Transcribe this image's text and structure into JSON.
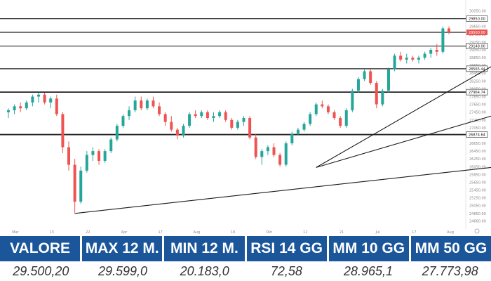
{
  "chart_data": {
    "type": "candlestick",
    "title": "",
    "ylim": [
      24450,
      30150
    ],
    "y_ticks": [
      24660,
      24850,
      25050,
      25250,
      25450,
      25650,
      25850,
      26050,
      26250,
      26450,
      26650,
      26850,
      27050,
      27250,
      27450,
      27650,
      27850,
      28050,
      28250,
      28450,
      28650,
      28850,
      29050,
      29250,
      29450,
      29650,
      29850,
      30050
    ],
    "x_tick_labels": [
      "Mar",
      "13",
      "22",
      "Apr",
      "17",
      "Aug",
      "19",
      "Okt",
      "12",
      "21",
      "Jul",
      "17",
      "Aug"
    ],
    "levels": [
      {
        "value": 29850,
        "label": "29850.00",
        "highlight": false
      },
      {
        "value": 29500,
        "label": "29500.00",
        "highlight": true
      },
      {
        "value": 29148,
        "label": "29148.00",
        "highlight": false
      },
      {
        "value": 28565.44,
        "label": "28565.44",
        "highlight": false
      },
      {
        "value": 27964.74,
        "label": "27964.74",
        "highlight": false
      },
      {
        "value": 26874.64,
        "label": "26874.64",
        "highlight": false
      }
    ],
    "trendlines": [
      {
        "from": [
          11,
          24850
        ],
        "to": [
          80,
          26030
        ]
      },
      {
        "from": [
          51,
          26030
        ],
        "to": [
          80,
          28620
        ]
      },
      {
        "from": [
          51,
          26030
        ],
        "to": [
          80,
          27350
        ]
      }
    ],
    "candles": [
      [
        27450,
        27550,
        27300,
        27500
      ],
      [
        27500,
        27650,
        27400,
        27600
      ],
      [
        27600,
        27700,
        27450,
        27550
      ],
      [
        27550,
        27750,
        27500,
        27700
      ],
      [
        27700,
        27900,
        27600,
        27850
      ],
      [
        27850,
        27950,
        27700,
        27900
      ],
      [
        27900,
        27950,
        27650,
        27700
      ],
      [
        27700,
        27850,
        27550,
        27800
      ],
      [
        27800,
        27900,
        27350,
        27400
      ],
      [
        27400,
        27450,
        26400,
        26550
      ],
      [
        26550,
        26700,
        25950,
        26100
      ],
      [
        26100,
        26250,
        24850,
        25150
      ],
      [
        25150,
        26050,
        25100,
        25950
      ],
      [
        25950,
        26450,
        25900,
        26350
      ],
      [
        26350,
        26550,
        26200,
        26450
      ],
      [
        26450,
        26500,
        26100,
        26200
      ],
      [
        26200,
        26500,
        26150,
        26450
      ],
      [
        26450,
        26800,
        26400,
        26750
      ],
      [
        26750,
        27150,
        26700,
        27100
      ],
      [
        27100,
        27400,
        27050,
        27350
      ],
      [
        27350,
        27600,
        27250,
        27500
      ],
      [
        27500,
        27850,
        27450,
        27750
      ],
      [
        27750,
        27850,
        27500,
        27550
      ],
      [
        27550,
        27800,
        27500,
        27750
      ],
      [
        27750,
        27850,
        27550,
        27600
      ],
      [
        27600,
        27700,
        27350,
        27400
      ],
      [
        27400,
        27450,
        27100,
        27200
      ],
      [
        27200,
        27350,
        26950,
        27000
      ],
      [
        27000,
        27050,
        26750,
        26850
      ],
      [
        26850,
        27150,
        26800,
        27100
      ],
      [
        27100,
        27450,
        27050,
        27400
      ],
      [
        27400,
        27500,
        27300,
        27350
      ],
      [
        27350,
        27500,
        27300,
        27450
      ],
      [
        27450,
        27500,
        27250,
        27300
      ],
      [
        27300,
        27450,
        27200,
        27350
      ],
      [
        27350,
        27500,
        27300,
        27450
      ],
      [
        27450,
        27500,
        27200,
        27250
      ],
      [
        27250,
        27300,
        27000,
        27050
      ],
      [
        27050,
        27250,
        27000,
        27200
      ],
      [
        27200,
        27350,
        27100,
        27300
      ],
      [
        27300,
        27350,
        26750,
        26800
      ],
      [
        26800,
        26900,
        26250,
        26300
      ],
      [
        26300,
        26500,
        26100,
        26450
      ],
      [
        26450,
        26600,
        26350,
        26550
      ],
      [
        26550,
        26650,
        26300,
        26350
      ],
      [
        26350,
        26400,
        26050,
        26100
      ],
      [
        26100,
        26700,
        26050,
        26650
      ],
      [
        26650,
        26950,
        26600,
        26900
      ],
      [
        26900,
        27050,
        26850,
        27000
      ],
      [
        27000,
        27200,
        26950,
        27150
      ],
      [
        27150,
        27450,
        27100,
        27400
      ],
      [
        27400,
        27700,
        27350,
        27650
      ],
      [
        27650,
        27750,
        27550,
        27600
      ],
      [
        27600,
        27650,
        27400,
        27450
      ],
      [
        27450,
        27500,
        27250,
        27300
      ],
      [
        27300,
        27350,
        27050,
        27100
      ],
      [
        27100,
        27550,
        27050,
        27500
      ],
      [
        27500,
        28050,
        27450,
        28000
      ],
      [
        28000,
        28350,
        27950,
        28300
      ],
      [
        28300,
        28550,
        28250,
        28500
      ],
      [
        28500,
        28550,
        28150,
        28200
      ],
      [
        28200,
        28250,
        27550,
        27650
      ],
      [
        27650,
        28050,
        27600,
        28000
      ],
      [
        28000,
        28600,
        27950,
        28550
      ],
      [
        28550,
        28950,
        28500,
        28900
      ],
      [
        28900,
        29000,
        28750,
        28800
      ],
      [
        28800,
        28950,
        28700,
        28850
      ],
      [
        28850,
        28900,
        28750,
        28800
      ],
      [
        28800,
        28900,
        28700,
        28850
      ],
      [
        28850,
        29000,
        28800,
        28950
      ],
      [
        28950,
        29100,
        28850,
        29050
      ],
      [
        29050,
        29200,
        28900,
        29000
      ],
      [
        29000,
        29650,
        28950,
        29600
      ],
      [
        29600,
        29650,
        29450,
        29500
      ]
    ]
  },
  "stats": {
    "headers": [
      "VALORE",
      "MAX 12 M.",
      "MIN 12 M.",
      "RSI 14 GG",
      "MM 10 GG",
      "MM 50 GG"
    ],
    "values": [
      "29.500,20",
      "29.599,0",
      "20.183,0",
      "72,58",
      "28.965,1",
      "27.773,98"
    ]
  },
  "colors": {
    "up": "#26a69a",
    "down": "#ef5350",
    "header_bg": "#1a5699",
    "level_highlight": "#ef5350"
  }
}
